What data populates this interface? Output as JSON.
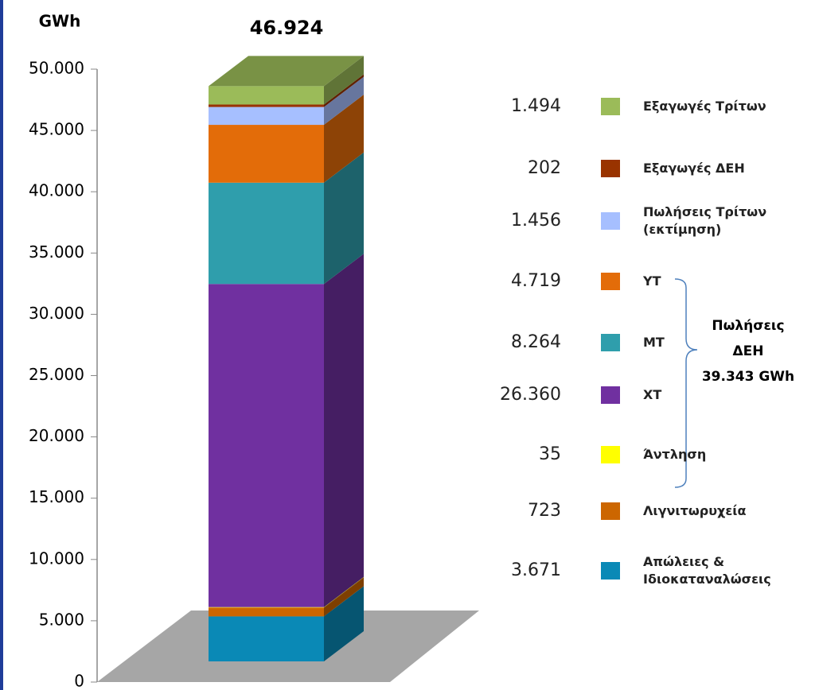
{
  "chart_data": {
    "type": "stacked-bar-3d",
    "y_label": "GWh",
    "total": {
      "value": 46924,
      "label": "46.924"
    },
    "ylim": [
      0,
      50000
    ],
    "yticks": [
      0,
      {
        "value": 5000,
        "label": "5.000"
      },
      {
        "value": 10000,
        "label": "10.000"
      },
      {
        "value": 15000,
        "label": "15.000"
      },
      {
        "value": 20000,
        "label": "20.000"
      },
      {
        "value": 25000,
        "label": "25.000"
      },
      {
        "value": 30000,
        "label": "30.000"
      },
      {
        "value": 35000,
        "label": "35.000"
      },
      {
        "value": 40000,
        "label": "40.000"
      },
      {
        "value": 45000,
        "label": "45.000"
      },
      {
        "value": 50000,
        "label": "50.000"
      }
    ],
    "series": [
      {
        "name": "Απώλειες & Ιδιοκαταναλώσεις",
        "color": "#0a89b6",
        "values": [
          3671
        ],
        "value_labels": [
          "3.671"
        ]
      },
      {
        "name": "Λιγνιτωρυχεία",
        "color": "#cc6600",
        "values": [
          723
        ],
        "value_labels": [
          "723"
        ]
      },
      {
        "name": "Άντληση",
        "color": "#ffff00",
        "values": [
          35
        ],
        "value_labels": [
          "35"
        ]
      },
      {
        "name": "ΧΤ",
        "color": "#7030a0",
        "values": [
          26360
        ],
        "value_labels": [
          "26.360"
        ]
      },
      {
        "name": "ΜΤ",
        "color": "#2f9eac",
        "values": [
          8264
        ],
        "value_labels": [
          "8.264"
        ]
      },
      {
        "name": "ΥΤ",
        "color": "#e36c09",
        "values": [
          4719
        ],
        "value_labels": [
          "4.719"
        ]
      },
      {
        "name": "Πωλήσεις Τρίτων (εκτίμηση)",
        "color": "#a6bfff",
        "values": [
          1456
        ],
        "value_labels": [
          "1.456"
        ]
      },
      {
        "name": "Εξαγωγές ΔΕΗ",
        "color": "#993300",
        "values": [
          202
        ],
        "value_labels": [
          "202"
        ]
      },
      {
        "name": "Εξαγωγές Τρίτων",
        "color": "#9bbb59",
        "values": [
          1494
        ],
        "value_labels": [
          "1.494"
        ]
      }
    ],
    "annotation": [
      "Πωλήσεις",
      "ΔΕΗ",
      "39.343 GWh"
    ]
  }
}
